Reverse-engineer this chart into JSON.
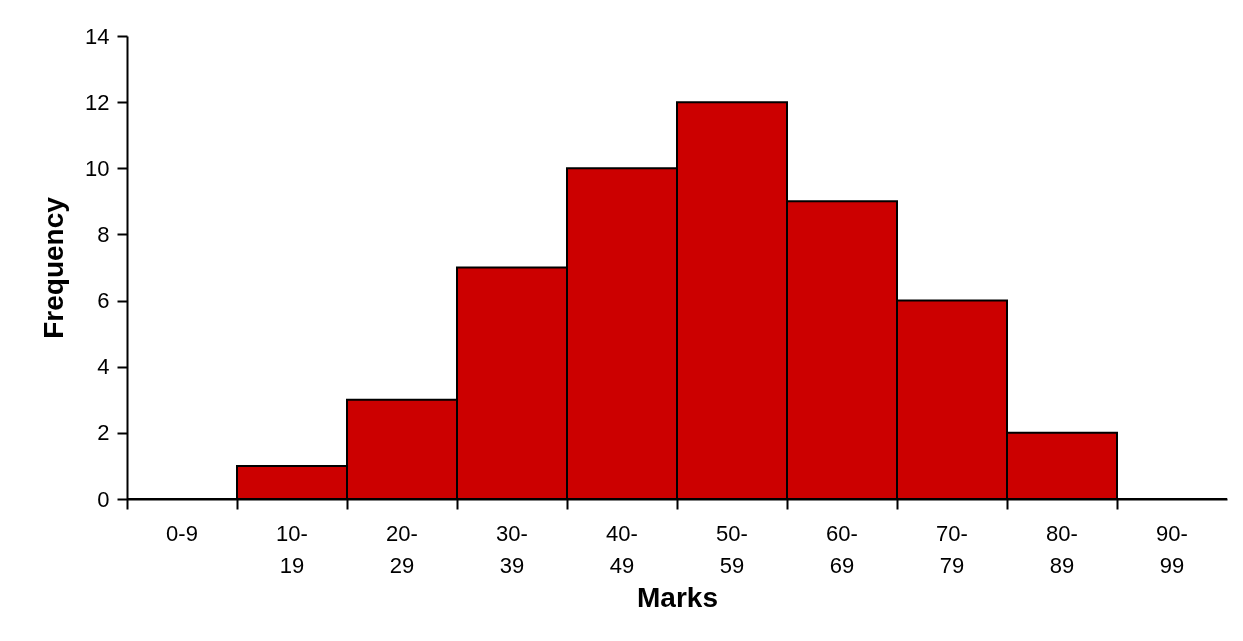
{
  "chart_data": {
    "type": "bar",
    "xlabel": "Marks",
    "ylabel": "Frequency",
    "categories": [
      "0-9",
      "10-19",
      "20-29",
      "30-39",
      "40-49",
      "50-59",
      "60-69",
      "70-79",
      "80-89",
      "90-99"
    ],
    "values": [
      0,
      1,
      3,
      7,
      10,
      12,
      9,
      6,
      2,
      0
    ],
    "color": "#cc0000",
    "ylim": [
      0,
      14
    ],
    "yticks": [
      0,
      2,
      4,
      6,
      8,
      10,
      12,
      14
    ],
    "grid": false
  }
}
